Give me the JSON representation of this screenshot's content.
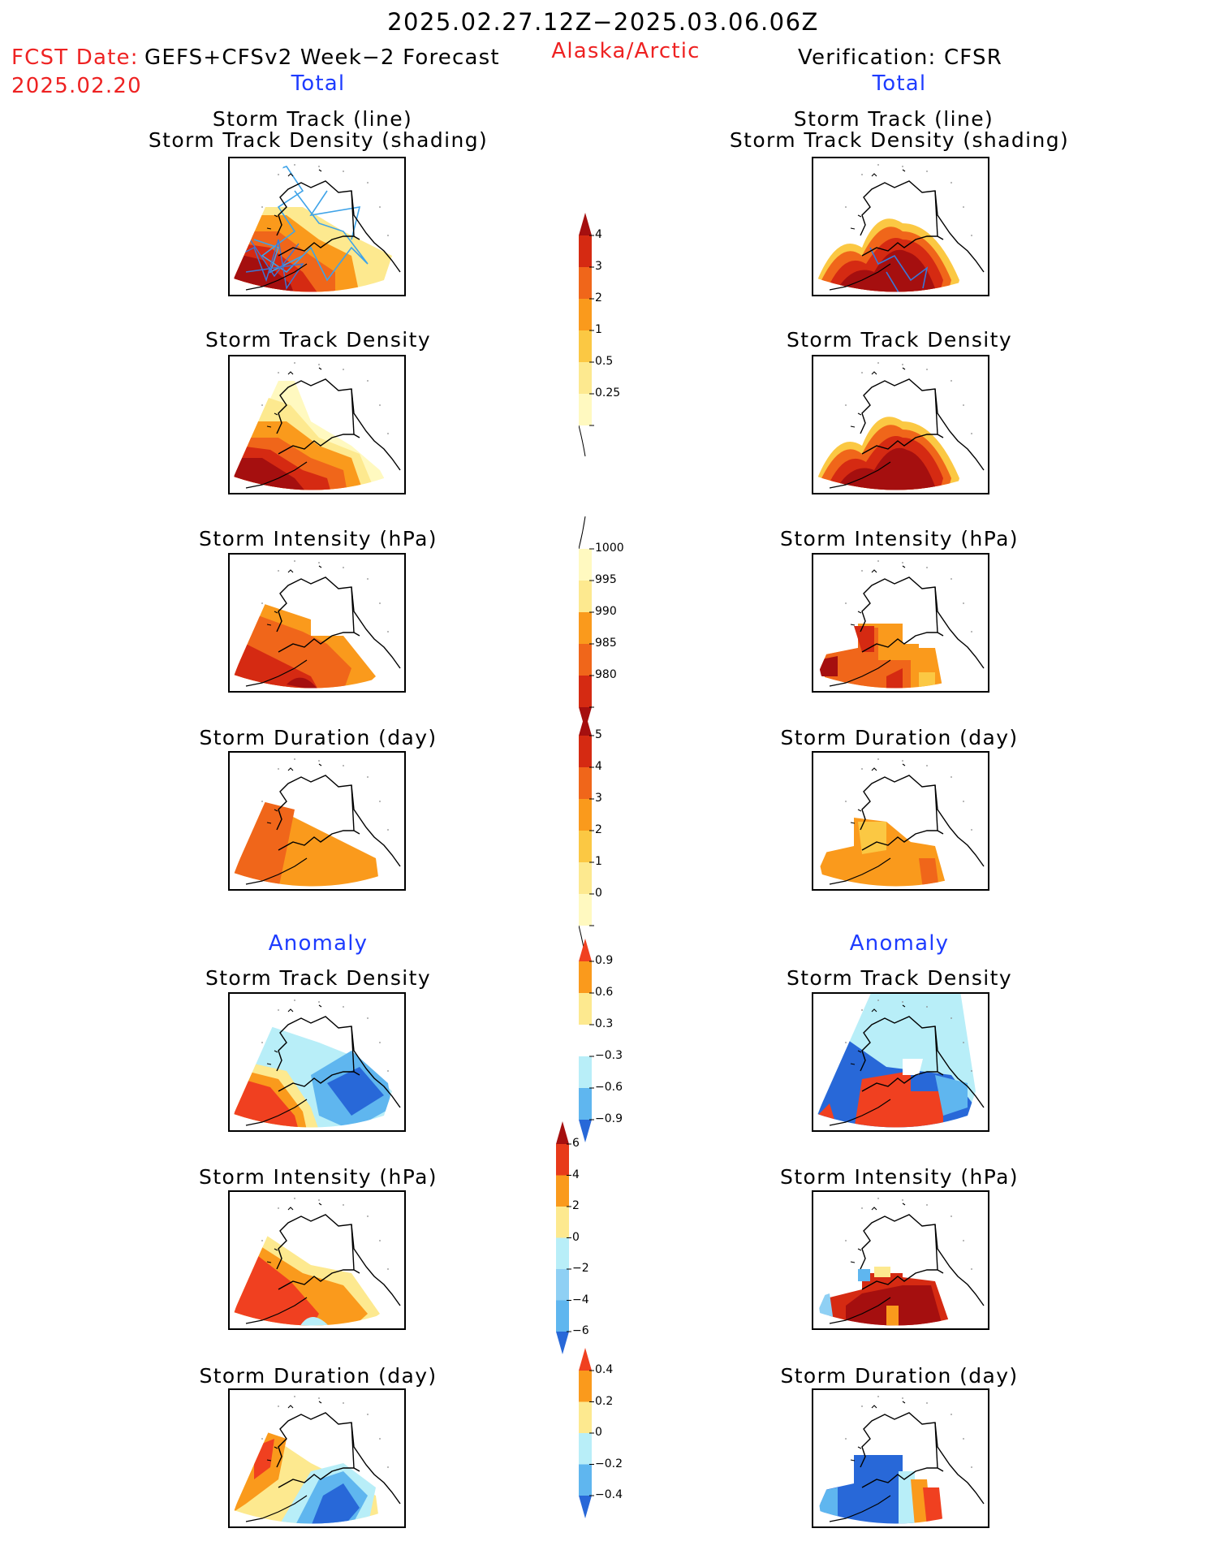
{
  "header": {
    "date_range": "2025.02.27.12Z−2025.03.06.06Z",
    "fcst_date_label": "FCST Date:",
    "forecast_name": "GEFS+CFSv2 Week−2 Forecast",
    "fcst_date_value": "2025.02.20",
    "region": "Alaska/Arctic",
    "verification": "Verification: CFSR",
    "left_section": "Total",
    "right_section": "Total"
  },
  "sections": {
    "anomaly_left": "Anomaly",
    "anomaly_right": "Anomaly"
  },
  "panel_titles": {
    "track_line": "Storm Track (line)",
    "track_density_shading": "Storm Track Density (shading)",
    "track_density": "Storm Track Density",
    "intensity": "Storm Intensity (hPa)",
    "duration": "Storm Duration (day)"
  },
  "colorbars": [
    {
      "id": "density",
      "labels": [
        "4",
        "3",
        "2",
        "1",
        "0.5",
        "0.25"
      ],
      "colors": [
        "#a50f0f",
        "#d52a12",
        "#f0661a",
        "#fa9a1c",
        "#fbc843",
        "#fde98f",
        "#fff9c0"
      ]
    },
    {
      "id": "intensity",
      "labels": [
        "1000",
        "995",
        "990",
        "985",
        "980"
      ],
      "colors": [
        "#fff9c0",
        "#fde98f",
        "#fa9a1c",
        "#f0661a",
        "#d52a12",
        "#a50f0f"
      ]
    },
    {
      "id": "duration",
      "labels": [
        "5",
        "4",
        "3",
        "2",
        "1",
        "0"
      ],
      "colors": [
        "#a50f0f",
        "#d52a12",
        "#f0661a",
        "#fa9a1c",
        "#fbc843",
        "#fde98f",
        "#fff9c0"
      ]
    },
    {
      "id": "anom_density",
      "labels": [
        "0.9",
        "0.6",
        "0.3",
        "−0.3",
        "−0.6",
        "−0.9"
      ],
      "colors": [
        "#f04020",
        "#fa9a1c",
        "#fde98f",
        "#ffffff",
        "#b8eef8",
        "#5fb6ef",
        "#2868d8"
      ]
    },
    {
      "id": "anom_intensity",
      "labels": [
        "6",
        "4",
        "2",
        "0",
        "−2",
        "−4",
        "−6"
      ],
      "colors": [
        "#a50f0f",
        "#e83a1a",
        "#fa9a1c",
        "#fde98f",
        "#b8eef8",
        "#8fd0f4",
        "#5fb6ef",
        "#2868d8"
      ]
    },
    {
      "id": "anom_duration",
      "labels": [
        "0.4",
        "0.2",
        "0",
        "−0.2",
        "−0.4"
      ],
      "colors": [
        "#f04020",
        "#fa9a1c",
        "#fde98f",
        "#b8eef8",
        "#5fb6ef",
        "#2868d8"
      ]
    }
  ],
  "colors": {
    "title_red": "#ee2222",
    "section_blue": "#1e3cff",
    "track_line_fcst": "#3fa3e8",
    "track_line_obs": "#3a78d8"
  }
}
